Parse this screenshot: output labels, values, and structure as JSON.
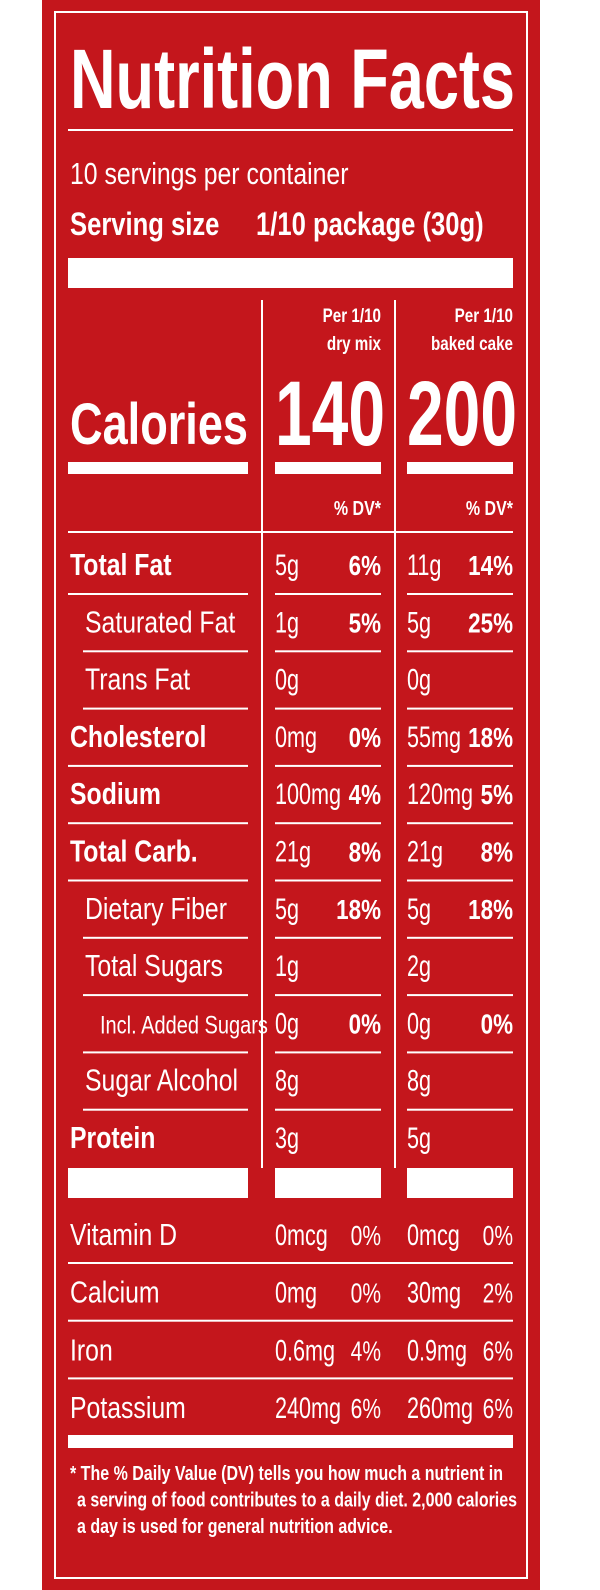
{
  "title": "Nutrition Facts",
  "servings": "10 servings per container",
  "serving_size": {
    "label": "Serving size",
    "value": "1/10 package (30g)"
  },
  "calories_label": "Calories",
  "columns": [
    {
      "header": [
        "Per 1/10",
        "dry mix"
      ],
      "calories": "140",
      "dv_header": "% DV*"
    },
    {
      "header": [
        "Per 1/10",
        "baked cake"
      ],
      "calories": "200",
      "dv_header": "% DV*"
    }
  ],
  "nutrients": [
    {
      "name": "Total Fat",
      "bold": true,
      "indent": 0,
      "values": [
        {
          "amount": "5g",
          "dv": "6%"
        },
        {
          "amount": "11g",
          "dv": "14%"
        }
      ]
    },
    {
      "name": "Saturated Fat",
      "bold": false,
      "indent": 1,
      "values": [
        {
          "amount": "1g",
          "dv": "5%"
        },
        {
          "amount": "5g",
          "dv": "25%"
        }
      ]
    },
    {
      "name": "Trans Fat",
      "bold": false,
      "indent": 1,
      "values": [
        {
          "amount": "0g"
        },
        {
          "amount": "0g"
        }
      ]
    },
    {
      "name": "Cholesterol",
      "bold": true,
      "indent": 0,
      "values": [
        {
          "amount": "0mg",
          "dv": "0%"
        },
        {
          "amount": "55mg",
          "dv": "18%"
        }
      ]
    },
    {
      "name": "Sodium",
      "bold": true,
      "indent": 0,
      "values": [
        {
          "amount": "100mg",
          "dv": "4%"
        },
        {
          "amount": "120mg",
          "dv": "5%"
        }
      ]
    },
    {
      "name": "Total Carb.",
      "bold": true,
      "indent": 0,
      "values": [
        {
          "amount": "21g",
          "dv": "8%"
        },
        {
          "amount": "21g",
          "dv": "8%"
        }
      ]
    },
    {
      "name": "Dietary Fiber",
      "bold": false,
      "indent": 1,
      "values": [
        {
          "amount": "5g",
          "dv": "18%"
        },
        {
          "amount": "5g",
          "dv": "18%"
        }
      ]
    },
    {
      "name": "Total Sugars",
      "bold": false,
      "indent": 1,
      "values": [
        {
          "amount": "1g"
        },
        {
          "amount": "2g"
        }
      ]
    },
    {
      "name": "Incl. Added Sugars",
      "bold": false,
      "indent": 2,
      "values": [
        {
          "amount": "0g",
          "dv": "0%"
        },
        {
          "amount": "0g",
          "dv": "0%"
        }
      ]
    },
    {
      "name": "Sugar Alcohol",
      "bold": false,
      "indent": 1,
      "values": [
        {
          "amount": "8g"
        },
        {
          "amount": "8g"
        }
      ]
    },
    {
      "name": "Protein",
      "bold": true,
      "indent": 0,
      "values": [
        {
          "amount": "3g"
        },
        {
          "amount": "5g"
        }
      ]
    }
  ],
  "vitamins": [
    {
      "name": "Vitamin D",
      "values": [
        {
          "amount": "0mcg",
          "dv": "0%"
        },
        {
          "amount": "0mcg",
          "dv": "0%"
        }
      ]
    },
    {
      "name": "Calcium",
      "values": [
        {
          "amount": "0mg",
          "dv": "0%"
        },
        {
          "amount": "30mg",
          "dv": "2%"
        }
      ]
    },
    {
      "name": "Iron",
      "values": [
        {
          "amount": "0.6mg",
          "dv": "4%"
        },
        {
          "amount": "0.9mg",
          "dv": "6%"
        }
      ]
    },
    {
      "name": "Potassium",
      "values": [
        {
          "amount": "240mg",
          "dv": "6%"
        },
        {
          "amount": "260mg",
          "dv": "6%"
        }
      ]
    }
  ],
  "footnote": [
    "* The % Daily Value (DV) tells you how much a nutrient in",
    "a serving of food contributes to a daily diet. 2,000 calories",
    "a day is used for general nutrition advice."
  ]
}
